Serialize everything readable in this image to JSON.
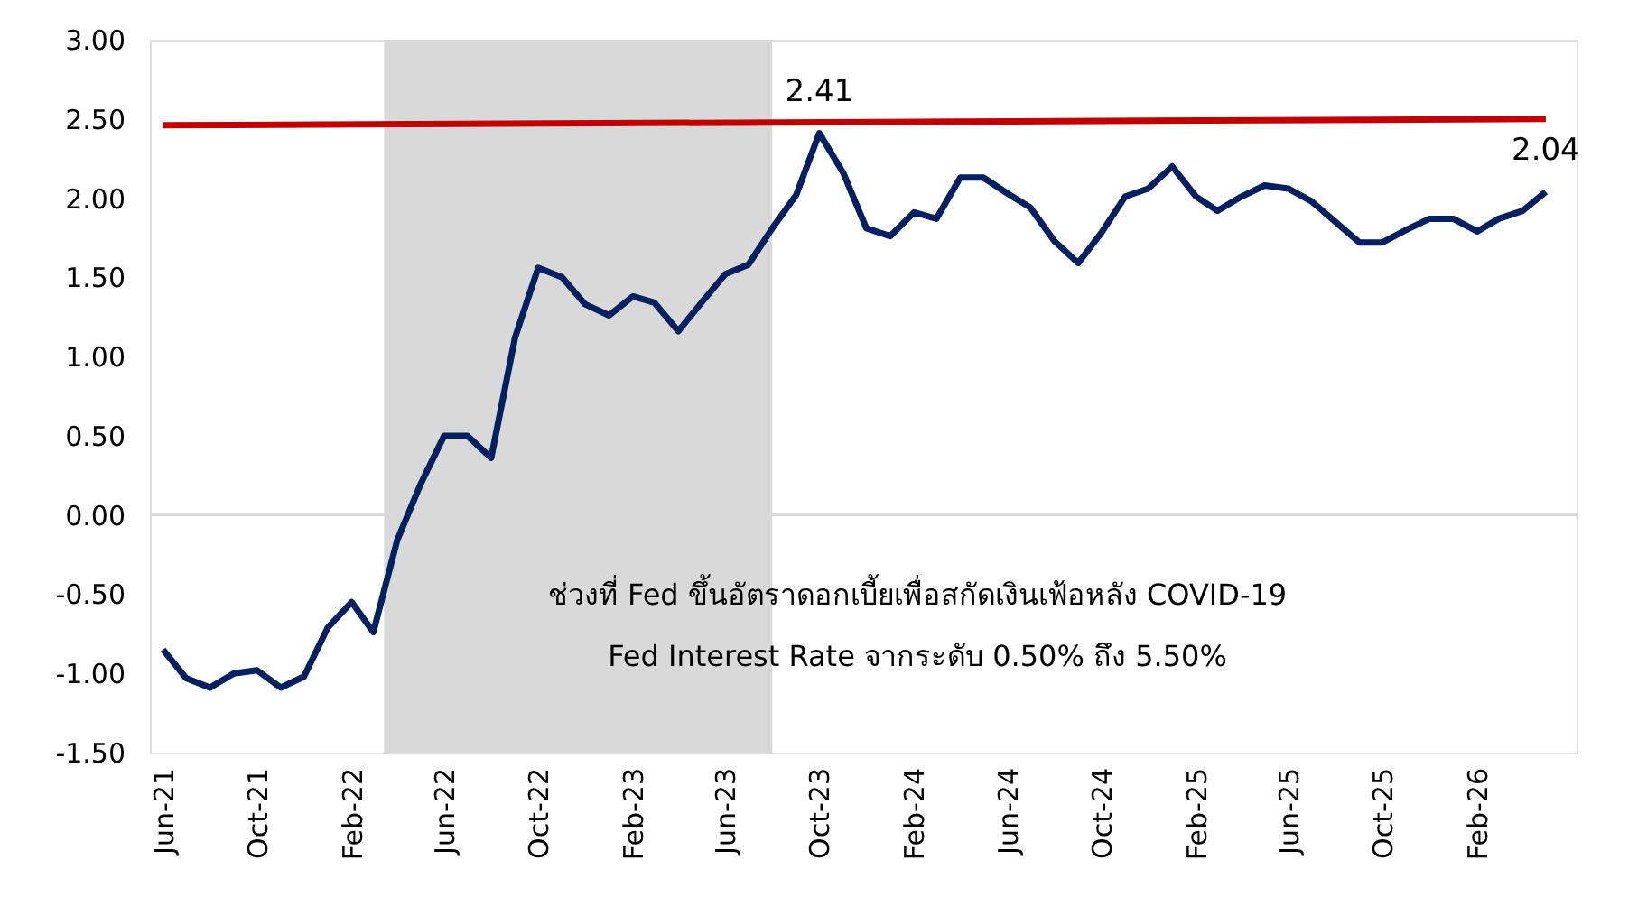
{
  "chart_data": {
    "type": "line",
    "x": [
      "2021-06",
      "2021-07",
      "2021-08",
      "2021-09",
      "2021-10",
      "2021-11",
      "2021-12",
      "2022-01",
      "2022-02",
      "2022-03",
      "2022-04",
      "2022-05",
      "2022-06",
      "2022-07",
      "2022-08",
      "2022-09",
      "2022-10",
      "2022-11",
      "2022-12",
      "2023-01",
      "2023-02",
      "2023-03",
      "2023-04",
      "2023-05",
      "2023-06",
      "2023-07",
      "2023-08",
      "2023-09",
      "2023-10",
      "2023-11",
      "2023-12",
      "2024-01",
      "2024-02",
      "2024-03",
      "2024-04",
      "2024-05",
      "2024-06",
      "2024-07",
      "2024-08",
      "2024-09",
      "2024-10",
      "2024-11",
      "2024-12",
      "2025-01",
      "2025-02",
      "2025-03",
      "2025-04",
      "2025-05",
      "2025-06",
      "2025-07",
      "2025-08",
      "2025-09",
      "2025-10",
      "2025-11",
      "2025-12",
      "2026-01",
      "2026-02",
      "2026-03",
      "2026-04",
      "2026-05"
    ],
    "series": [
      {
        "color": "#002060",
        "values": [
          -0.85,
          -1.03,
          -1.09,
          -1.0,
          -0.98,
          -1.09,
          -1.02,
          -0.71,
          -0.55,
          -0.74,
          -0.16,
          0.19,
          0.5,
          0.5,
          0.36,
          1.12,
          1.56,
          1.5,
          1.33,
          1.26,
          1.38,
          1.34,
          1.16,
          1.34,
          1.52,
          1.58,
          1.81,
          2.02,
          2.41,
          2.16,
          1.81,
          1.76,
          1.91,
          1.87,
          2.13,
          2.13,
          2.03,
          1.94,
          1.73,
          1.59,
          1.78,
          2.01,
          2.06,
          2.2,
          2.01,
          1.92,
          2.01,
          2.08,
          2.06,
          1.98,
          1.85,
          1.72,
          1.72,
          1.8,
          1.87,
          1.87,
          1.79,
          1.87,
          1.92,
          2.04
        ],
        "value_labels": [
          null,
          null,
          null,
          null,
          null,
          null,
          null,
          null,
          null,
          null,
          null,
          null,
          null,
          null,
          null,
          null,
          null,
          null,
          null,
          null,
          null,
          null,
          null,
          null,
          null,
          null,
          null,
          null,
          "2.41",
          null,
          null,
          null,
          null,
          null,
          null,
          null,
          null,
          null,
          null,
          null,
          null,
          null,
          null,
          null,
          null,
          null,
          null,
          null,
          null,
          null,
          null,
          null,
          null,
          null,
          null,
          null,
          null,
          null,
          null,
          "2.04"
        ]
      },
      {
        "color": "#c00000",
        "x": [
          "2021-06",
          "2026-05"
        ],
        "values": [
          2.46,
          2.5
        ]
      }
    ],
    "xlim": [
      "2021-05-15",
      "2026-06-10"
    ],
    "xticks": [
      {
        "value": "2021-06",
        "label": "Jun-21"
      },
      {
        "value": "2021-10",
        "label": "Oct-21"
      },
      {
        "value": "2022-02",
        "label": "Feb-22"
      },
      {
        "value": "2022-06",
        "label": "Jun-22"
      },
      {
        "value": "2022-10",
        "label": "Oct-22"
      },
      {
        "value": "2023-02",
        "label": "Feb-23"
      },
      {
        "value": "2023-06",
        "label": "Jun-23"
      },
      {
        "value": "2023-10",
        "label": "Oct-23"
      },
      {
        "value": "2024-02",
        "label": "Feb-24"
      },
      {
        "value": "2024-06",
        "label": "Jun-24"
      },
      {
        "value": "2024-10",
        "label": "Oct-24"
      },
      {
        "value": "2025-02",
        "label": "Feb-25"
      },
      {
        "value": "2025-06",
        "label": "Jun-25"
      },
      {
        "value": "2025-10",
        "label": "Oct-25"
      },
      {
        "value": "2026-02",
        "label": "Feb-26"
      }
    ],
    "ylim": [
      -1.5,
      3.0
    ],
    "yticks": [
      {
        "value": -1.5,
        "label": "-1.50"
      },
      {
        "value": -1.0,
        "label": "-1.00"
      },
      {
        "value": -0.5,
        "label": "-0.50"
      },
      {
        "value": 0,
        "label": "0.00"
      },
      {
        "value": 0.5,
        "label": "0.50"
      },
      {
        "value": 1.0,
        "label": "1.00"
      },
      {
        "value": 1.5,
        "label": "1.50"
      },
      {
        "value": 2.0,
        "label": "2.00"
      },
      {
        "value": 2.5,
        "label": "2.50"
      },
      {
        "value": 3.0,
        "label": "3.00"
      }
    ],
    "bands": [
      {
        "axis": "x",
        "from": "2022-03-15",
        "to": "2023-08-01",
        "color": "#d9d9d9"
      }
    ],
    "ref_lines": [
      {
        "axis": "y",
        "value": 0,
        "color": "#d9d9d9"
      }
    ],
    "annotations": [
      "ช่วงที่ Fed ขึ้นอัตราดอกเบี้ยเพื่อสกัดเงินเฟ้อหลัง COVID-19",
      "Fed Interest Rate จากระดับ 0.50% ถึง 5.50%"
    ],
    "grid": false,
    "marker": "none",
    "line_style": "solid"
  }
}
